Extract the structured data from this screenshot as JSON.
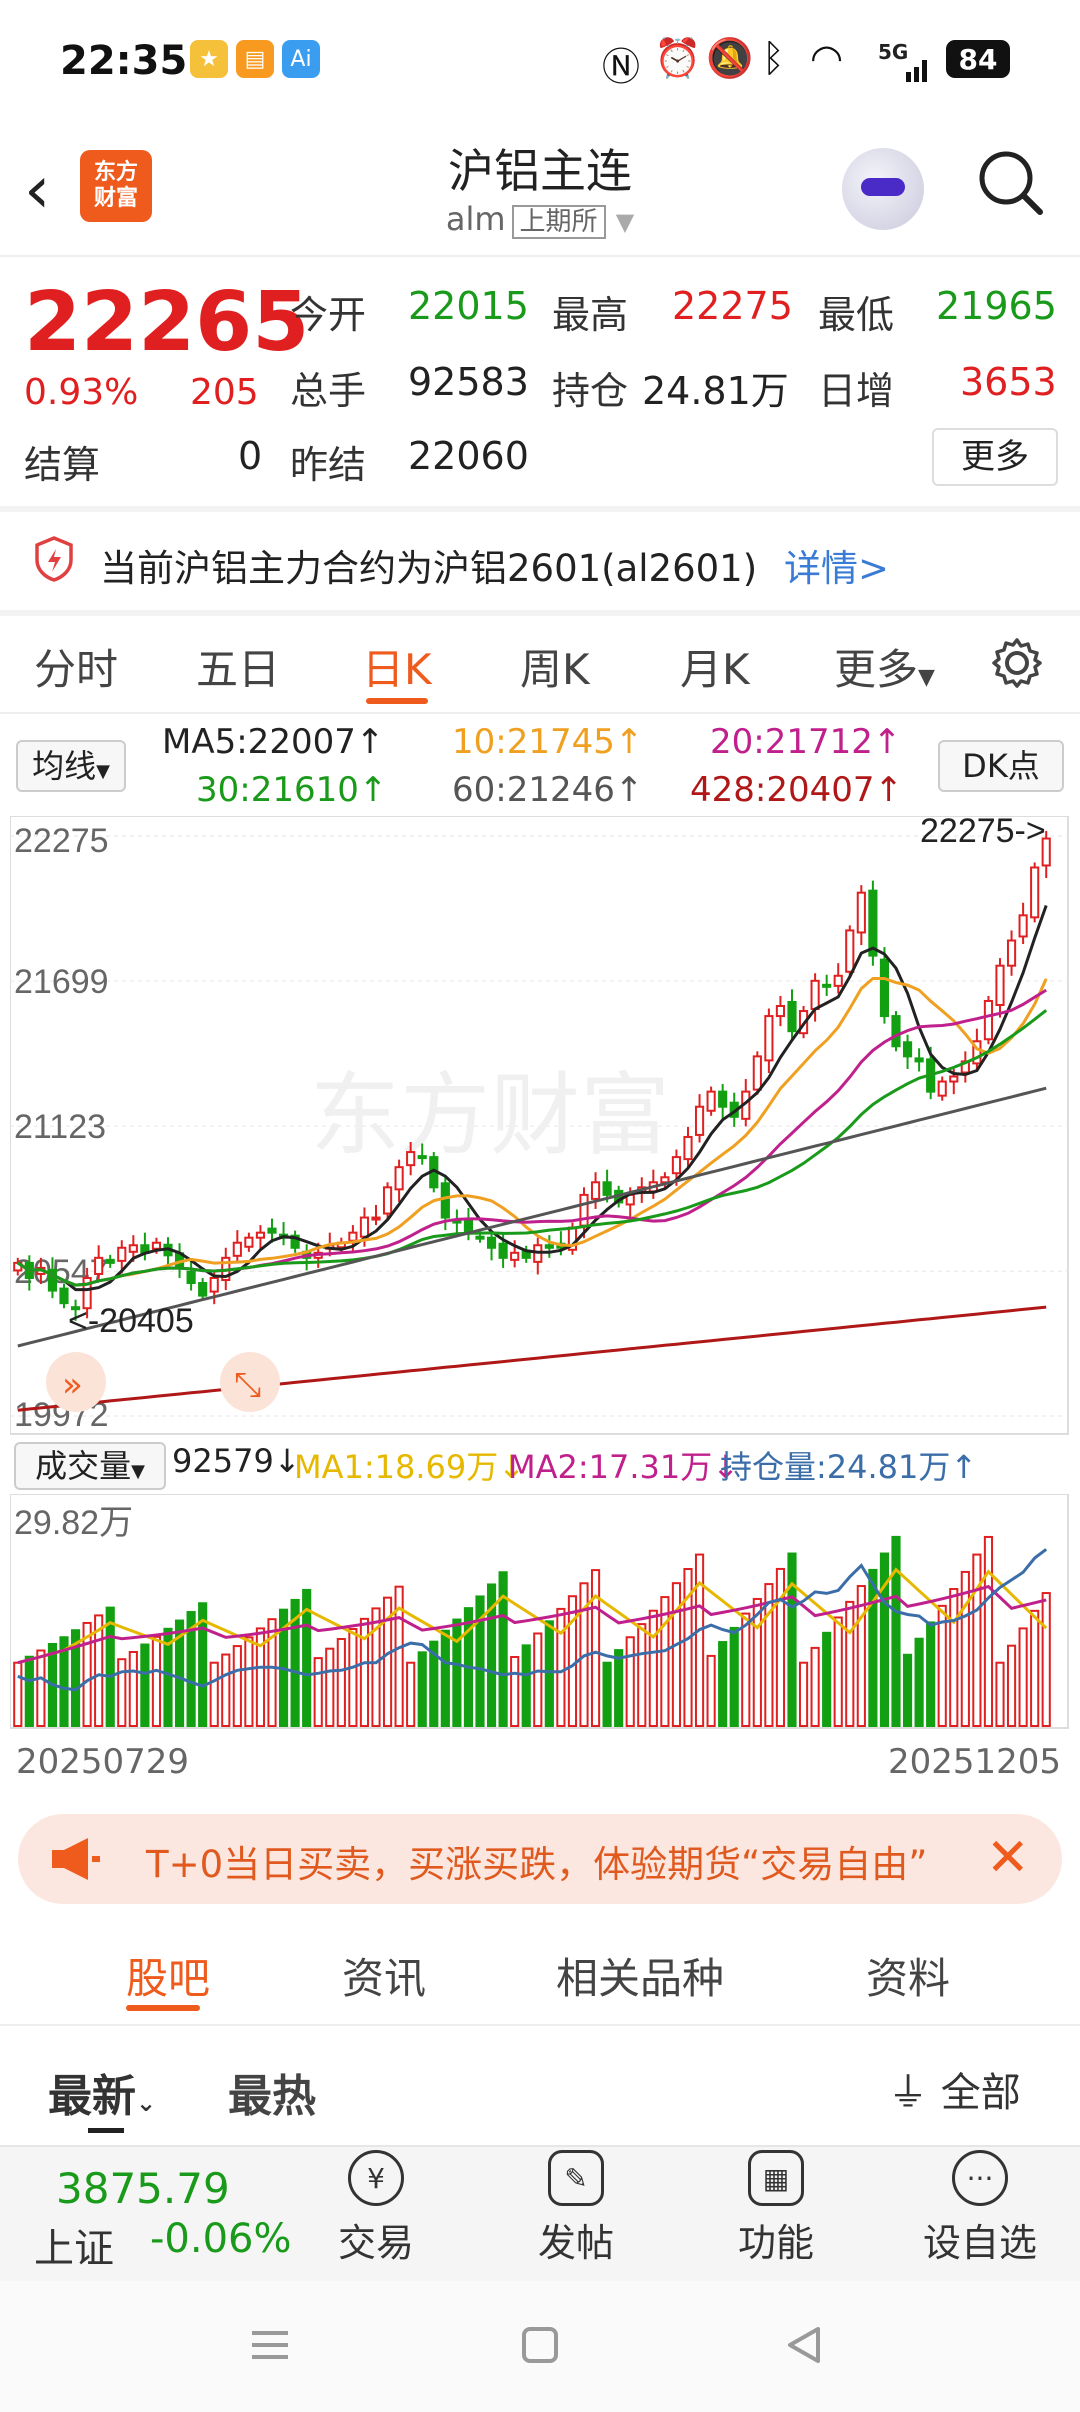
{
  "status": {
    "time": "22:35",
    "signal": "5G",
    "battery": "84"
  },
  "header": {
    "logo": [
      "东方",
      "财富"
    ],
    "title": "沪铝主连",
    "code": "alm",
    "exchange": "上期所"
  },
  "quote": {
    "price": "22265",
    "change_pct": "0.93%",
    "change": "205",
    "rows": [
      [
        {
          "label": "今开",
          "value": "22015"
        },
        {
          "label": "最高",
          "value": "22275"
        },
        {
          "label": "最低",
          "value": "21965"
        }
      ],
      [
        {
          "label": "总手",
          "value": "92583"
        },
        {
          "label": "持仓",
          "value": "24.81万"
        },
        {
          "label": "日增",
          "value": "3653"
        }
      ],
      [
        {
          "label": "结算",
          "value": "0"
        },
        {
          "label": "昨结",
          "value": "22060"
        }
      ]
    ],
    "more": "更多"
  },
  "notice": {
    "text": "当前沪铝主力合约为沪铝2601(al2601)",
    "link": "详情>"
  },
  "ktabs": [
    "分时",
    "五日",
    "日K",
    "周K",
    "月K",
    "更多"
  ],
  "ma_legend": {
    "selector": "均线",
    "dk": "DK点",
    "items": [
      {
        "text": "MA5:22007↑",
        "color": "#222222"
      },
      {
        "text": "10:21745↑",
        "color": "#f0a020"
      },
      {
        "text": "20:21712↑",
        "color": "#c0208c"
      },
      {
        "text": "30:21610↑",
        "color": "#1a9a1a"
      },
      {
        "text": "60:21246↑",
        "color": "#555555"
      },
      {
        "text": "428:20407↑",
        "color": "#b01818"
      }
    ]
  },
  "chart_data": [
    {
      "type": "candlestick",
      "y_ticks": [
        "22275",
        "21699",
        "21123",
        "20547",
        "19972"
      ],
      "ylim": [
        19972,
        22275
      ],
      "annotations": [
        "22275->",
        "<-20405"
      ],
      "watermark": "东方财富",
      "series_colors": {
        "up": "#e02020",
        "down": "#12a012",
        "ma5": "#222222",
        "ma10": "#f0a020",
        "ma20": "#c0208c",
        "ma30": "#1a9a1a",
        "ma60": "#555555",
        "ma428": "#b01818"
      },
      "closes": [
        20580,
        20520,
        20560,
        20470,
        20420,
        20400,
        20520,
        20600,
        20580,
        20640,
        20650,
        20620,
        20660,
        20610,
        20560,
        20500,
        20450,
        20520,
        20600,
        20660,
        20680,
        20700,
        20700,
        20680,
        20640,
        20600,
        20620,
        20650,
        20660,
        20700,
        20760,
        20760,
        20880,
        20960,
        21020,
        21000,
        20880,
        20760,
        20740,
        20700,
        20680,
        20640,
        20600,
        20620,
        20600,
        20650,
        20640,
        20640,
        20720,
        20850,
        20900,
        20850,
        20820,
        20850,
        20880,
        20900,
        20920,
        21000,
        21080,
        21200,
        21260,
        21200,
        21160,
        21260,
        21400,
        21560,
        21600,
        21500,
        21580,
        21700,
        21680,
        21720,
        21900,
        22050,
        21800,
        21560,
        21440,
        21400,
        21380,
        21260,
        21300,
        21320,
        21380,
        21460,
        21620,
        21760,
        21860,
        21960,
        22150,
        22265
      ]
    },
    {
      "type": "bar",
      "selector": "成交量",
      "latest": "92579↓",
      "legend": [
        {
          "text": "MA1:18.69万↓",
          "color": "#e6b800"
        },
        {
          "text": "MA2:17.31万↓",
          "color": "#c0208c"
        },
        {
          "text": "持仓量:24.81万↑",
          "color": "#3b6ea8"
        }
      ],
      "max_label": "29.82万",
      "x_start": "20250729",
      "x_end": "20251205"
    }
  ],
  "promo": {
    "text": "T+0当日买卖，买涨买跌，体验期货“交易自由”"
  },
  "bottom_tabs": [
    "股吧",
    "资讯",
    "相关品种",
    "资料"
  ],
  "sub_tabs": {
    "latest": "最新",
    "hot": "最热",
    "filter": "全部"
  },
  "index": {
    "value": "3875.79",
    "name": "上证",
    "change": "-0.06%"
  },
  "bottom_nav": [
    {
      "label": "交易",
      "icon": "¥"
    },
    {
      "label": "发帖",
      "icon": "✎"
    },
    {
      "label": "功能",
      "icon": "▦"
    },
    {
      "label": "设自选",
      "icon": "···"
    }
  ]
}
